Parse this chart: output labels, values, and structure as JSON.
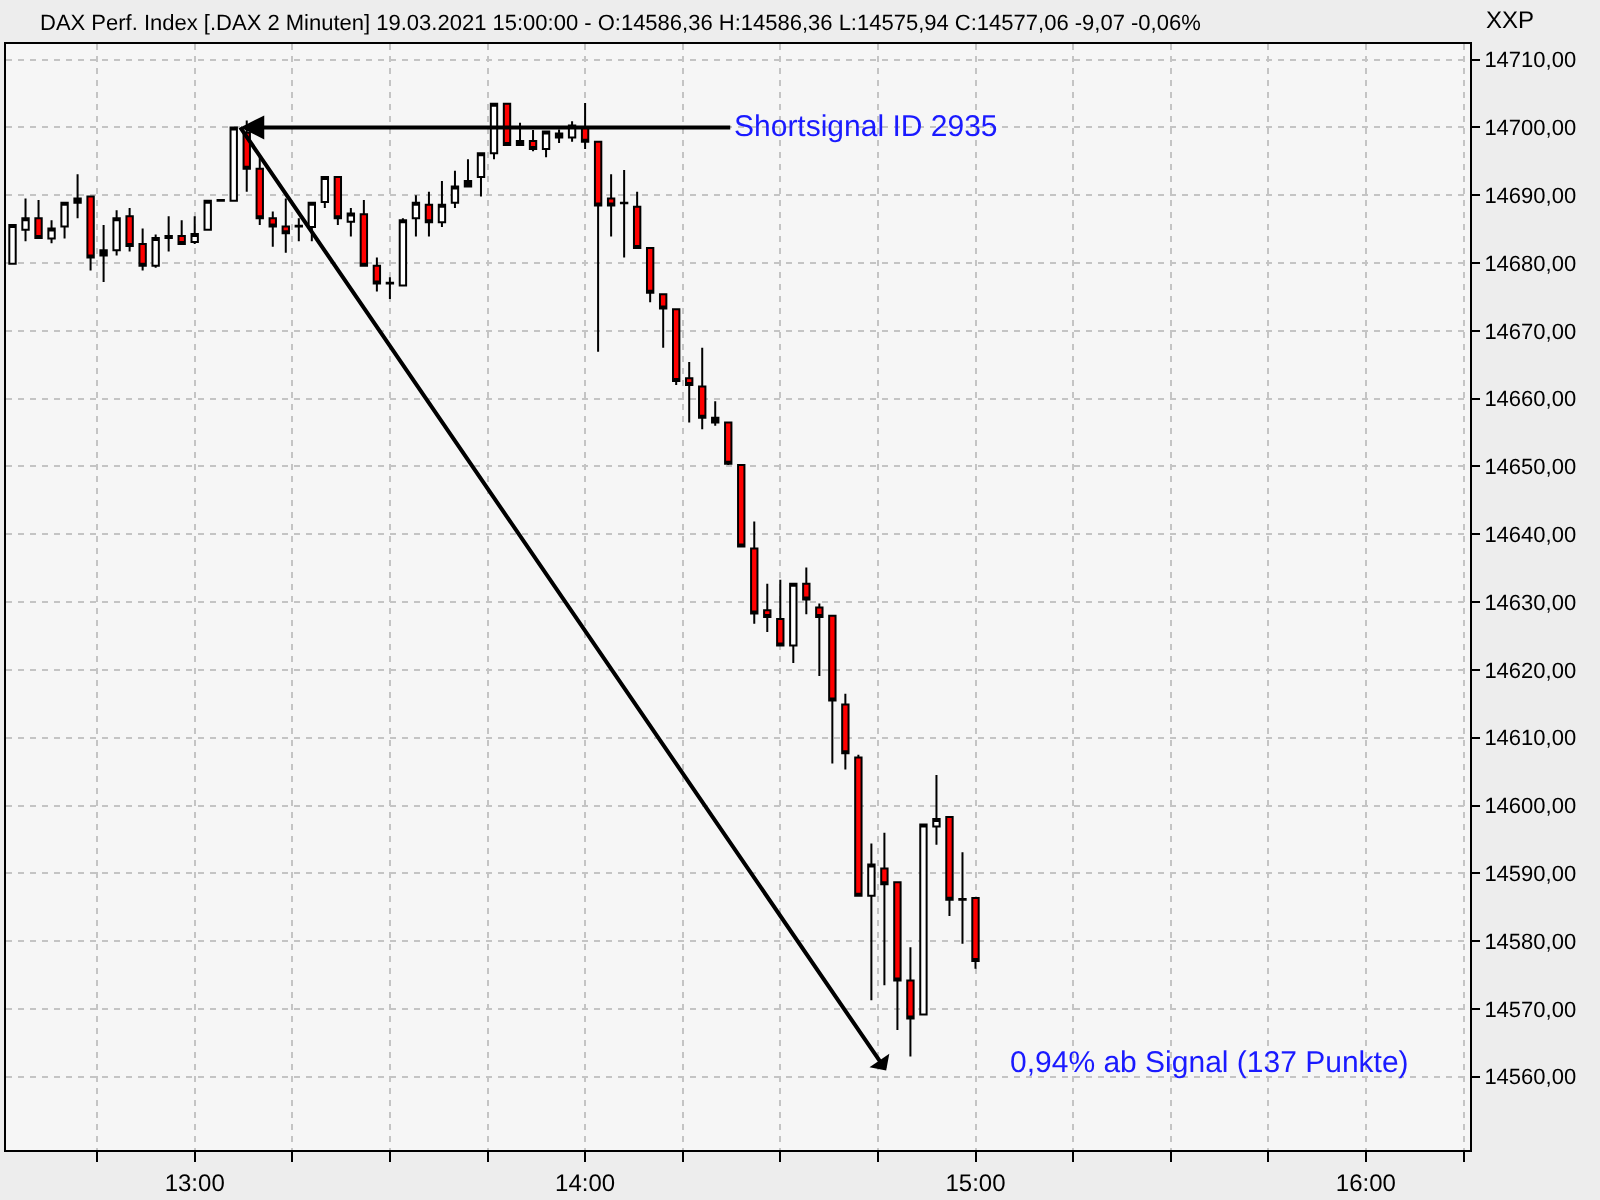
{
  "chart_data": {
    "type": "candlestick",
    "title": "DAX Perf. Index [.DAX 2 Minuten] 19.03.2021 15:00:00 - O:14586,36 H:14586,36 L:14575,94 C:14577,06 -9,07 -0,06%",
    "ylabel": "XXP",
    "x": [
      "2021-03-19T12:32",
      "2021-03-19T12:34",
      "2021-03-19T12:36",
      "2021-03-19T12:38",
      "2021-03-19T12:40",
      "2021-03-19T12:42",
      "2021-03-19T12:44",
      "2021-03-19T12:46",
      "2021-03-19T12:48",
      "2021-03-19T12:50",
      "2021-03-19T12:52",
      "2021-03-19T12:54",
      "2021-03-19T12:56",
      "2021-03-19T12:58",
      "2021-03-19T13:00",
      "2021-03-19T13:02",
      "2021-03-19T13:04",
      "2021-03-19T13:06",
      "2021-03-19T13:08",
      "2021-03-19T13:10",
      "2021-03-19T13:12",
      "2021-03-19T13:14",
      "2021-03-19T13:16",
      "2021-03-19T13:18",
      "2021-03-19T13:20",
      "2021-03-19T13:22",
      "2021-03-19T13:24",
      "2021-03-19T13:26",
      "2021-03-19T13:28",
      "2021-03-19T13:30",
      "2021-03-19T13:32",
      "2021-03-19T13:34",
      "2021-03-19T13:36",
      "2021-03-19T13:38",
      "2021-03-19T13:40",
      "2021-03-19T13:42",
      "2021-03-19T13:44",
      "2021-03-19T13:46",
      "2021-03-19T13:48",
      "2021-03-19T13:50",
      "2021-03-19T13:52",
      "2021-03-19T13:54",
      "2021-03-19T13:56",
      "2021-03-19T13:58",
      "2021-03-19T14:00",
      "2021-03-19T14:02",
      "2021-03-19T14:04",
      "2021-03-19T14:06",
      "2021-03-19T14:08",
      "2021-03-19T14:10",
      "2021-03-19T14:12",
      "2021-03-19T14:14",
      "2021-03-19T14:16",
      "2021-03-19T14:18",
      "2021-03-19T14:20",
      "2021-03-19T14:22",
      "2021-03-19T14:24",
      "2021-03-19T14:26",
      "2021-03-19T14:28",
      "2021-03-19T14:30",
      "2021-03-19T14:32",
      "2021-03-19T14:34",
      "2021-03-19T14:36",
      "2021-03-19T14:38",
      "2021-03-19T14:40",
      "2021-03-19T14:42",
      "2021-03-19T14:44",
      "2021-03-19T14:46",
      "2021-03-19T14:48",
      "2021-03-19T14:50",
      "2021-03-19T14:52",
      "2021-03-19T14:54",
      "2021-03-19T14:56",
      "2021-03-19T14:58",
      "2021-03-19T15:00"
    ],
    "ohlc": [
      [
        14679.9,
        14685.6,
        14679.9,
        14685.6
      ],
      [
        14684.9,
        14689.5,
        14683.2,
        14686.6
      ],
      [
        14686.6,
        14689.3,
        14683.7,
        14683.7
      ],
      [
        14683.6,
        14686.3,
        14682.9,
        14685.1
      ],
      [
        14685.4,
        14688.9,
        14683.6,
        14688.9
      ],
      [
        14688.9,
        14693.1,
        14686.6,
        14689.5
      ],
      [
        14689.8,
        14689.8,
        14678.9,
        14680.8
      ],
      [
        14681.1,
        14685.6,
        14677.2,
        14681.9
      ],
      [
        14681.9,
        14687.8,
        14681.1,
        14686.6
      ],
      [
        14686.9,
        14688.1,
        14681.7,
        14682.5
      ],
      [
        14682.8,
        14685.1,
        14678.9,
        14679.6
      ],
      [
        14679.6,
        14684.2,
        14679.3,
        14683.7
      ],
      [
        14683.7,
        14686.9,
        14681.7,
        14684.0
      ],
      [
        14684.0,
        14686.3,
        14682.8,
        14682.8
      ],
      [
        14683.1,
        14686.9,
        14682.8,
        14684.3
      ],
      [
        14684.9,
        14689.2,
        14684.9,
        14689.2
      ],
      [
        14689.2,
        14689.3,
        14689.2,
        14689.3
      ],
      [
        14689.2,
        14700.0,
        14689.2,
        14700.0
      ],
      [
        14699.2,
        14701.0,
        14690.5,
        14693.9
      ],
      [
        14693.9,
        14695.8,
        14685.6,
        14686.6
      ],
      [
        14686.6,
        14687.6,
        14682.4,
        14685.4
      ],
      [
        14685.4,
        14689.5,
        14681.5,
        14684.4
      ],
      [
        14685.4,
        14686.6,
        14683.2,
        14685.5
      ],
      [
        14685.3,
        14688.9,
        14683.2,
        14688.9
      ],
      [
        14689.0,
        14692.7,
        14688.1,
        14692.7
      ],
      [
        14692.7,
        14692.7,
        14685.6,
        14686.6
      ],
      [
        14686.1,
        14688.1,
        14683.9,
        14687.3
      ],
      [
        14687.2,
        14689.3,
        14679.6,
        14679.6
      ],
      [
        14679.6,
        14680.8,
        14675.8,
        14677.0
      ],
      [
        14677.0,
        14677.9,
        14674.7,
        14677.1
      ],
      [
        14676.7,
        14686.6,
        14676.7,
        14686.3
      ],
      [
        14686.6,
        14690.0,
        14683.9,
        14688.9
      ],
      [
        14688.6,
        14690.5,
        14683.9,
        14686.0
      ],
      [
        14686.0,
        14692.1,
        14685.3,
        14688.6
      ],
      [
        14688.9,
        14693.6,
        14688.1,
        14691.3
      ],
      [
        14691.3,
        14695.3,
        14691.3,
        14692.1
      ],
      [
        14692.7,
        14696.2,
        14689.8,
        14696.2
      ],
      [
        14696.2,
        14703.5,
        14695.3,
        14703.5
      ],
      [
        14703.5,
        14703.5,
        14697.4,
        14697.4
      ],
      [
        14697.4,
        14700.7,
        14697.4,
        14698.0
      ],
      [
        14698.0,
        14699.6,
        14696.5,
        14696.8
      ],
      [
        14696.8,
        14699.4,
        14695.6,
        14699.4
      ],
      [
        14699.1,
        14699.7,
        14697.7,
        14698.5
      ],
      [
        14698.5,
        14700.9,
        14697.9,
        14700.3
      ],
      [
        14700.0,
        14703.6,
        14696.8,
        14697.9
      ],
      [
        14697.9,
        14697.9,
        14666.9,
        14688.5
      ],
      [
        14689.5,
        14693.1,
        14683.9,
        14688.5
      ],
      [
        14688.8,
        14693.7,
        14680.8,
        14688.9
      ],
      [
        14688.3,
        14690.5,
        14682.2,
        14682.2
      ],
      [
        14682.2,
        14682.2,
        14674.2,
        14675.6
      ],
      [
        14675.4,
        14675.4,
        14667.5,
        14673.3
      ],
      [
        14673.2,
        14673.2,
        14662.0,
        14662.6
      ],
      [
        14663.0,
        14665.4,
        14656.5,
        14662.0
      ],
      [
        14661.8,
        14667.5,
        14655.5,
        14657.2
      ],
      [
        14657.2,
        14659.6,
        14656.0,
        14656.5
      ],
      [
        14656.5,
        14656.5,
        14650.2,
        14650.4
      ],
      [
        14650.2,
        14650.2,
        14638.2,
        14638.2
      ],
      [
        14637.9,
        14641.9,
        14626.8,
        14628.3
      ],
      [
        14628.8,
        14632.7,
        14625.6,
        14627.8
      ],
      [
        14627.5,
        14633.3,
        14623.6,
        14623.6
      ],
      [
        14623.6,
        14632.7,
        14621.0,
        14632.7
      ],
      [
        14632.7,
        14635.1,
        14628.2,
        14630.4
      ],
      [
        14629.2,
        14629.8,
        14619.1,
        14627.8
      ],
      [
        14628.0,
        14628.0,
        14606.2,
        14615.5
      ],
      [
        14614.9,
        14616.5,
        14605.3,
        14607.7
      ],
      [
        14607.1,
        14607.5,
        14586.7,
        14586.7
      ],
      [
        14586.7,
        14594.4,
        14571.3,
        14591.3
      ],
      [
        14590.7,
        14596.0,
        14573.5,
        14588.4
      ],
      [
        14588.7,
        14588.7,
        14566.9,
        14574.2
      ],
      [
        14574.2,
        14579.1,
        14563.0,
        14568.6
      ],
      [
        14569.2,
        14597.2,
        14569.2,
        14597.2
      ],
      [
        14596.9,
        14604.5,
        14594.2,
        14598.0
      ],
      [
        14598.3,
        14598.3,
        14583.7,
        14586.1
      ],
      [
        14586.1,
        14593.1,
        14579.6,
        14586.2
      ],
      [
        14586.36,
        14586.36,
        14575.94,
        14577.06
      ]
    ],
    "colors": [
      "#ffffff",
      "#ffffff",
      "#ff0000",
      "#ffffff",
      "#ffffff",
      "#000000",
      "#ff0000",
      "#000000",
      "#ffffff",
      "#ff0000",
      "#ff0000",
      "#ffffff",
      "#000000",
      "#ff0000",
      "#ffffff",
      "#ffffff",
      "#000000",
      "#ffffff",
      "#ff0000",
      "#ff0000",
      "#ff0000",
      "#ff0000",
      "#000000",
      "#ffffff",
      "#ffffff",
      "#ff0000",
      "#ffffff",
      "#ff0000",
      "#ff0000",
      "#000000",
      "#ffffff",
      "#ffffff",
      "#ff0000",
      "#ffffff",
      "#ffffff",
      "#000000",
      "#ffffff",
      "#ffffff",
      "#ff0000",
      "#000000",
      "#ff0000",
      "#ffffff",
      "#000000",
      "#ffffff",
      "#ff0000",
      "#ff0000",
      "#ff0000",
      "#000000",
      "#ff0000",
      "#ff0000",
      "#ff0000",
      "#ff0000",
      "#ff0000",
      "#ff0000",
      "#000000",
      "#ff0000",
      "#ff0000",
      "#ff0000",
      "#ff0000",
      "#ff0000",
      "#ffffff",
      "#ff0000",
      "#ff0000",
      "#ff0000",
      "#ff0000",
      "#ff0000",
      "#ffffff",
      "#ff0000",
      "#ff0000",
      "#ff0000",
      "#ffffff",
      "#ffffff",
      "#ff0000",
      "#000000",
      "#ff0000"
    ],
    "xlim": [
      "2021-03-19T12:31",
      "2021-03-19T16:16"
    ],
    "xticks": [
      {
        "value": "2021-03-19T12:45",
        "label": null
      },
      {
        "value": "2021-03-19T13:00",
        "label": "13:00"
      },
      {
        "value": "2021-03-19T13:15",
        "label": null
      },
      {
        "value": "2021-03-19T13:30",
        "label": null
      },
      {
        "value": "2021-03-19T13:45",
        "label": null
      },
      {
        "value": "2021-03-19T14:00",
        "label": "14:00"
      },
      {
        "value": "2021-03-19T14:15",
        "label": null
      },
      {
        "value": "2021-03-19T14:30",
        "label": null
      },
      {
        "value": "2021-03-19T14:45",
        "label": null
      },
      {
        "value": "2021-03-19T15:00",
        "label": "15:00"
      },
      {
        "value": "2021-03-19T15:15",
        "label": null
      },
      {
        "value": "2021-03-19T15:30",
        "label": null
      },
      {
        "value": "2021-03-19T15:45",
        "label": null
      },
      {
        "value": "2021-03-19T16:00",
        "label": "16:00"
      },
      {
        "value": "2021-03-19T16:15",
        "label": null
      }
    ],
    "ylim": [
      14549.2,
      14712.3
    ],
    "yticks": [
      {
        "value": 14560,
        "label": "14560,00"
      },
      {
        "value": 14570,
        "label": "14570,00"
      },
      {
        "value": 14580,
        "label": "14580,00"
      },
      {
        "value": 14590,
        "label": "14590,00"
      },
      {
        "value": 14600,
        "label": "14600,00"
      },
      {
        "value": 14610,
        "label": "14610,00"
      },
      {
        "value": 14620,
        "label": "14620,00"
      },
      {
        "value": 14630,
        "label": "14630,00"
      },
      {
        "value": 14640,
        "label": "14640,00"
      },
      {
        "value": 14650,
        "label": "14650,00"
      },
      {
        "value": 14660,
        "label": "14660,00"
      },
      {
        "value": 14670,
        "label": "14670,00"
      },
      {
        "value": 14680,
        "label": "14680,00"
      },
      {
        "value": 14690,
        "label": "14690,00"
      },
      {
        "value": 14700,
        "label": "14700,00"
      },
      {
        "value": 14710,
        "label": "14710,00"
      }
    ],
    "grid": true,
    "annotations": [
      {
        "text": "Shortsignal ID 2935",
        "x": "2021-03-19T13:07",
        "y": 14700
      },
      "0,94% ab Signal (137 Punkte)"
    ]
  }
}
